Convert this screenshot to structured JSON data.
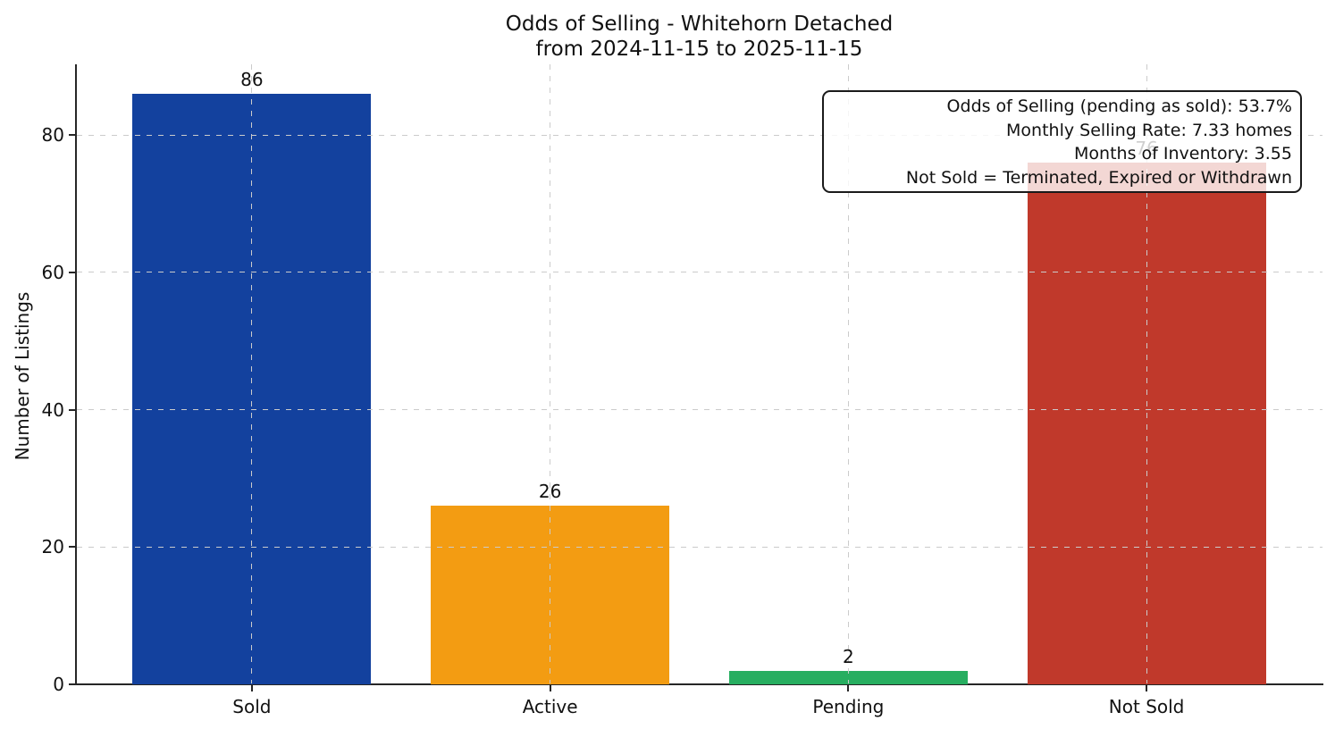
{
  "chart_data": {
    "type": "bar",
    "title": "Odds of Selling - Whitehorn Detached",
    "subtitle": "from 2024-11-15 to 2025-11-15",
    "ylabel": "Number of Listings",
    "xlabel": "",
    "categories": [
      "Sold",
      "Active",
      "Pending",
      "Not Sold"
    ],
    "values": [
      86,
      26,
      2,
      76
    ],
    "bar_colors": [
      "#13419E",
      "#F39C12",
      "#27AE60",
      "#C0392B"
    ],
    "yticks": [
      0,
      20,
      40,
      60,
      80
    ],
    "ylim": [
      0,
      90.3
    ],
    "grid": "dashed, both axes, light gray",
    "legend_position": "none",
    "annotation": {
      "position": "top-right",
      "lines": [
        "Odds of Selling (pending as sold): 53.7%",
        "Monthly Selling Rate: 7.33 homes",
        "Months of Inventory: 3.55",
        "Not Sold = Terminated, Expired or Withdrawn"
      ]
    }
  }
}
